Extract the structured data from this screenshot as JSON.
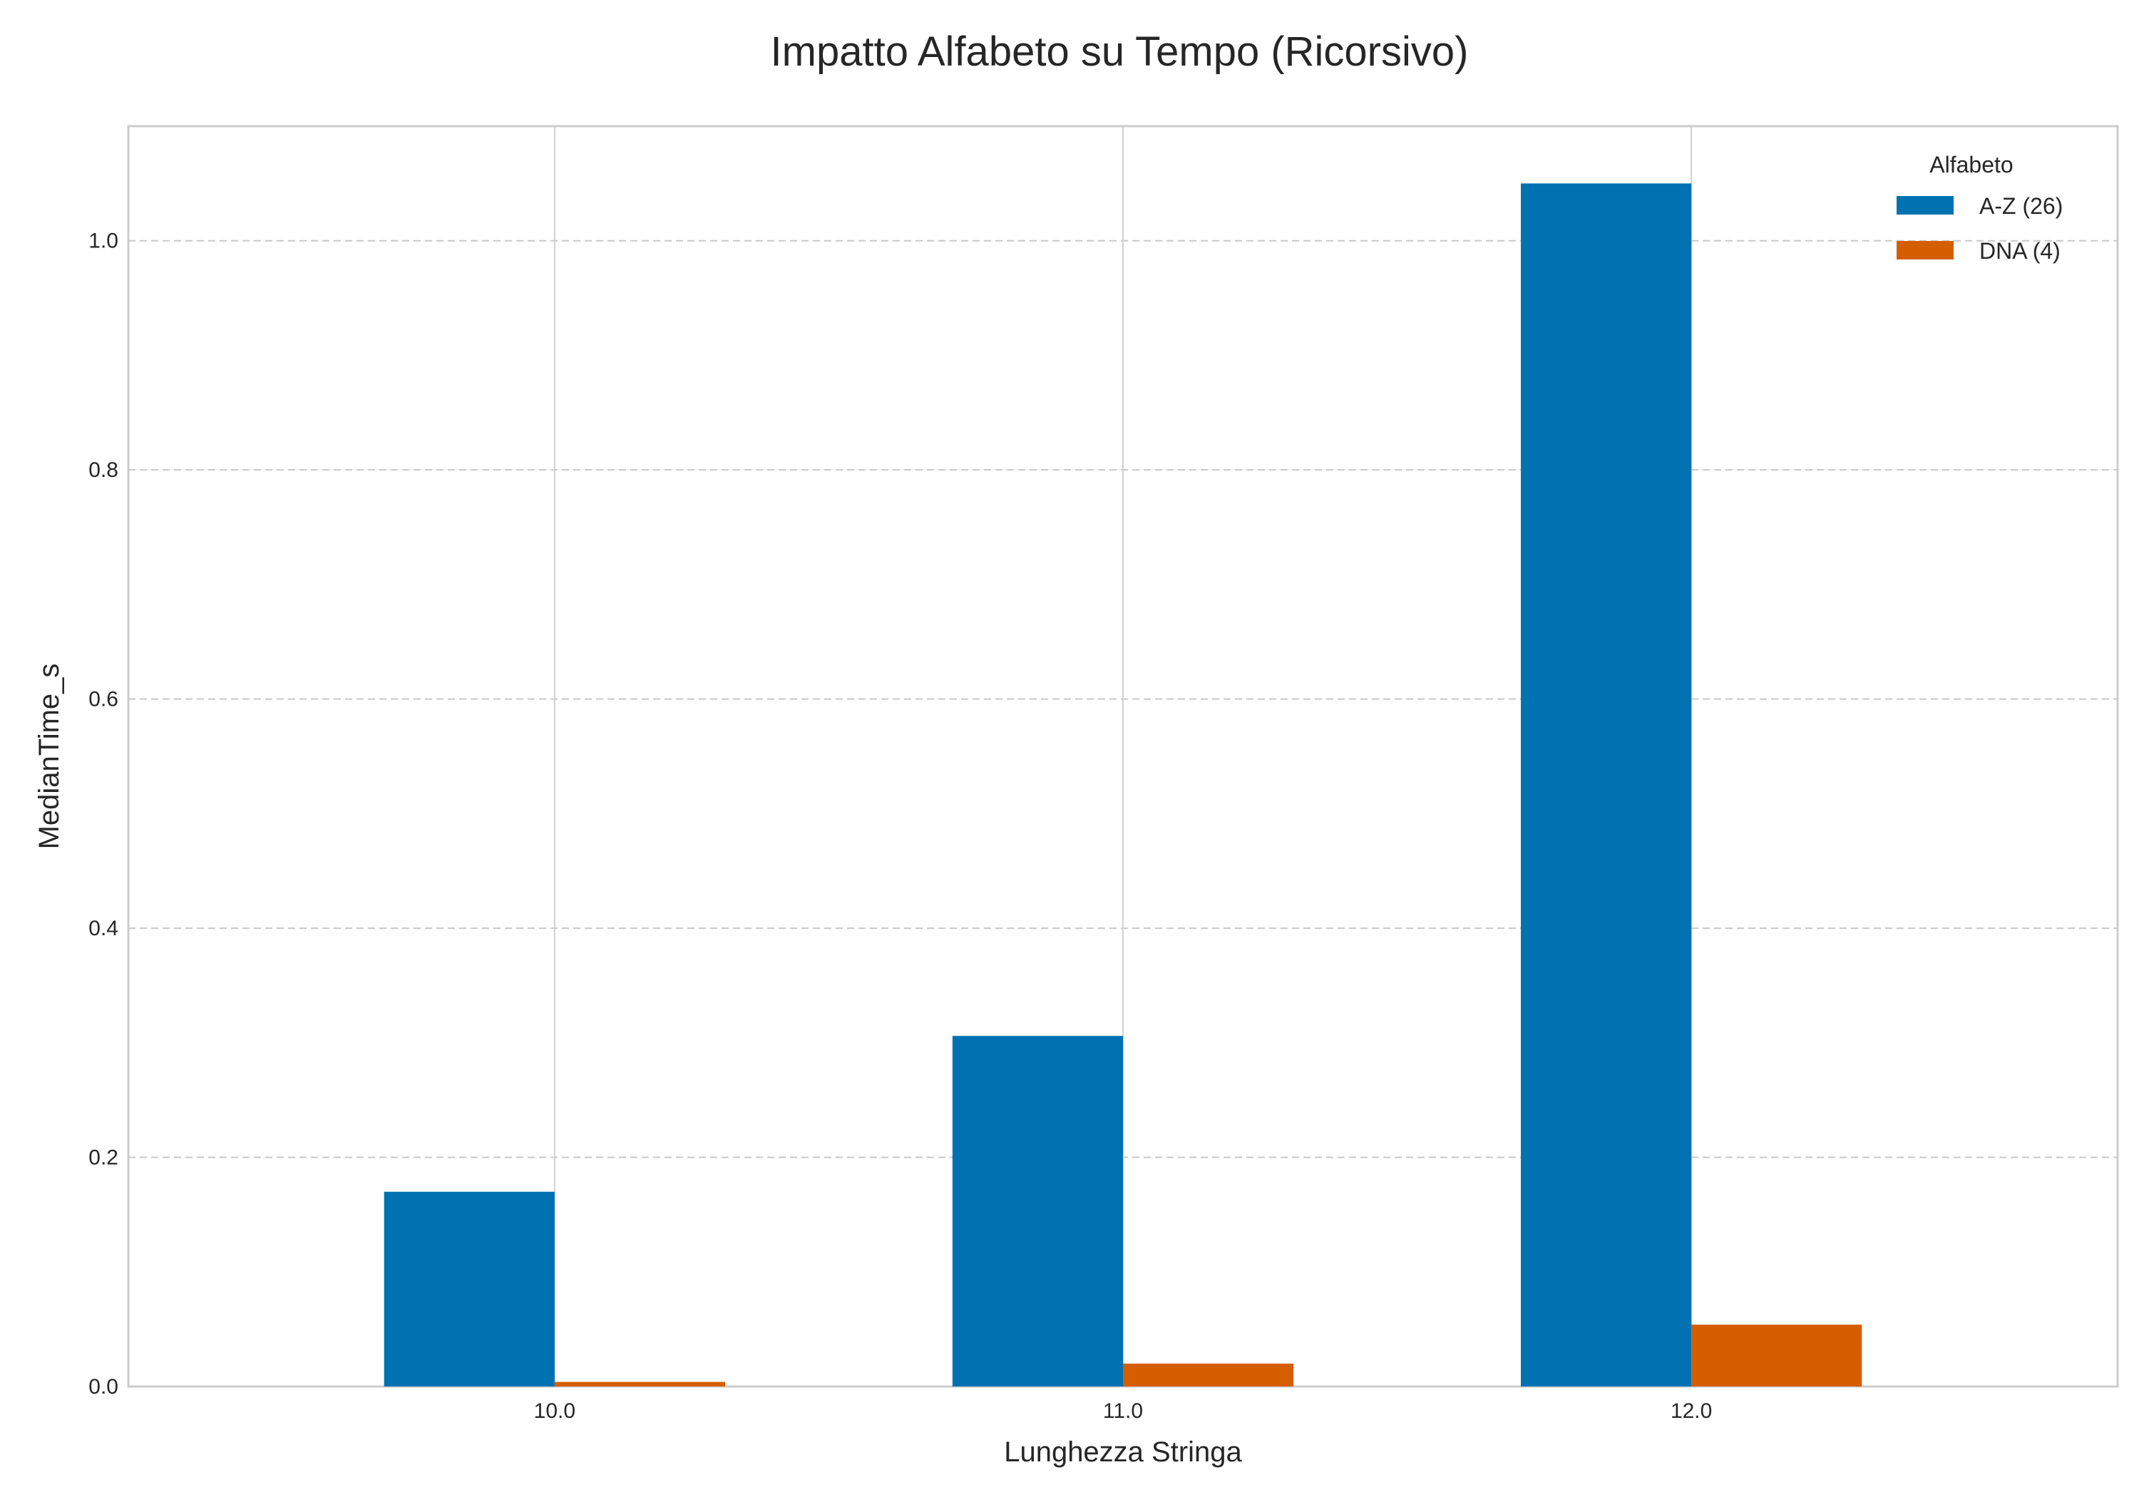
{
  "chart_data": {
    "type": "bar",
    "title": "Impatto Alfabeto su Tempo (Ricorsivo)",
    "xlabel": "Lunghezza Stringa",
    "ylabel": "MedianTime_s",
    "categories": [
      "10.0",
      "11.0",
      "12.0"
    ],
    "series": [
      {
        "name": "A-Z (26)",
        "color": "#0072B2",
        "values": [
          0.17,
          0.306,
          1.05
        ]
      },
      {
        "name": "DNA (4)",
        "color": "#D55E00",
        "values": [
          0.004,
          0.02,
          0.054
        ]
      }
    ],
    "ylim": [
      0,
      1.1
    ],
    "yticks": [
      "0.0",
      "0.2",
      "0.4",
      "0.6",
      "0.8",
      "1.0"
    ],
    "ytick_values": [
      0,
      0.2,
      0.4,
      0.6,
      0.8,
      1.0
    ],
    "grid": {
      "y": "dashed",
      "x": "solid at category centers"
    },
    "legend": {
      "title": "Alfabeto",
      "placement": "top-right"
    }
  }
}
